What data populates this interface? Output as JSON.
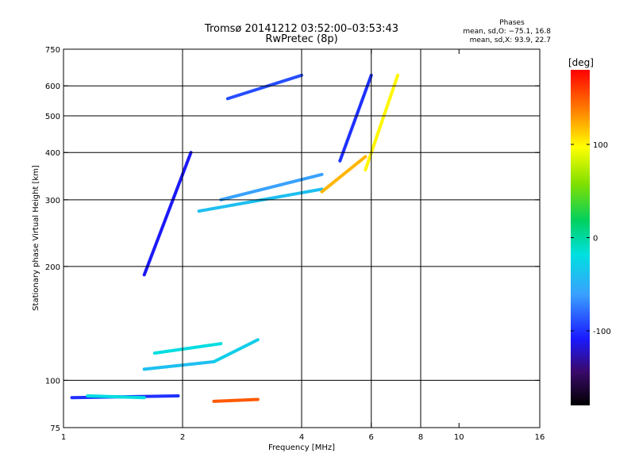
{
  "chart_data": {
    "type": "scatter",
    "title": "Tromsø 20141212 03:52:00–03:53:43",
    "subtitle": "RwPretec (8p)",
    "xlabel": "Frequency [MHz]",
    "ylabel": "Stationary phase Virtual Height [km]",
    "x_scale": "log",
    "y_scale": "log",
    "xlim": [
      1,
      16
    ],
    "ylim": [
      75,
      750
    ],
    "xticks": [
      1,
      2,
      4,
      6,
      8,
      10,
      16
    ],
    "yticks": [
      75,
      100,
      200,
      300,
      400,
      500,
      600,
      750
    ],
    "grid_x": [
      2,
      4,
      6,
      8
    ],
    "grid_y": [
      100,
      200,
      300,
      400,
      500,
      600
    ],
    "legend": {
      "title": "Phases",
      "line1": "mean, sd,O: −75.1, 16.8",
      "line2": "mean, sd,X:  93.9, 22.7"
    },
    "colorbar": {
      "label": "[deg]",
      "range": [
        -180,
        180
      ],
      "ticks": [
        100,
        0,
        -100
      ]
    },
    "series": [
      {
        "x": [
          1.05,
          1.95
        ],
        "y": [
          90,
          91
        ],
        "phase": -100
      },
      {
        "x": [
          1.15,
          1.6
        ],
        "y": [
          91,
          90
        ],
        "phase": -20
      },
      {
        "x": [
          1.6,
          2.4
        ],
        "y": [
          107,
          112
        ],
        "phase": -40
      },
      {
        "x": [
          1.7,
          2.5
        ],
        "y": [
          118,
          125
        ],
        "phase": -20
      },
      {
        "x": [
          2.4,
          3.1
        ],
        "y": [
          112,
          128
        ],
        "phase": -30
      },
      {
        "x": [
          1.6,
          2.1
        ],
        "y": [
          190,
          400
        ],
        "phase": -110
      },
      {
        "x": [
          2.2,
          4.5
        ],
        "y": [
          280,
          320
        ],
        "phase": -40
      },
      {
        "x": [
          2.5,
          4.5
        ],
        "y": [
          300,
          350
        ],
        "phase": -60
      },
      {
        "x": [
          2.6,
          4.0
        ],
        "y": [
          555,
          640
        ],
        "phase": -90
      },
      {
        "x": [
          4.5,
          5.8
        ],
        "y": [
          315,
          390
        ],
        "phase": 120
      },
      {
        "x": [
          5.0,
          6.0
        ],
        "y": [
          380,
          640
        ],
        "phase": -100
      },
      {
        "x": [
          5.8,
          7.0
        ],
        "y": [
          360,
          640
        ],
        "phase": 100
      },
      {
        "x": [
          2.4,
          3.1
        ],
        "y": [
          88,
          89
        ],
        "phase": 150
      }
    ]
  }
}
